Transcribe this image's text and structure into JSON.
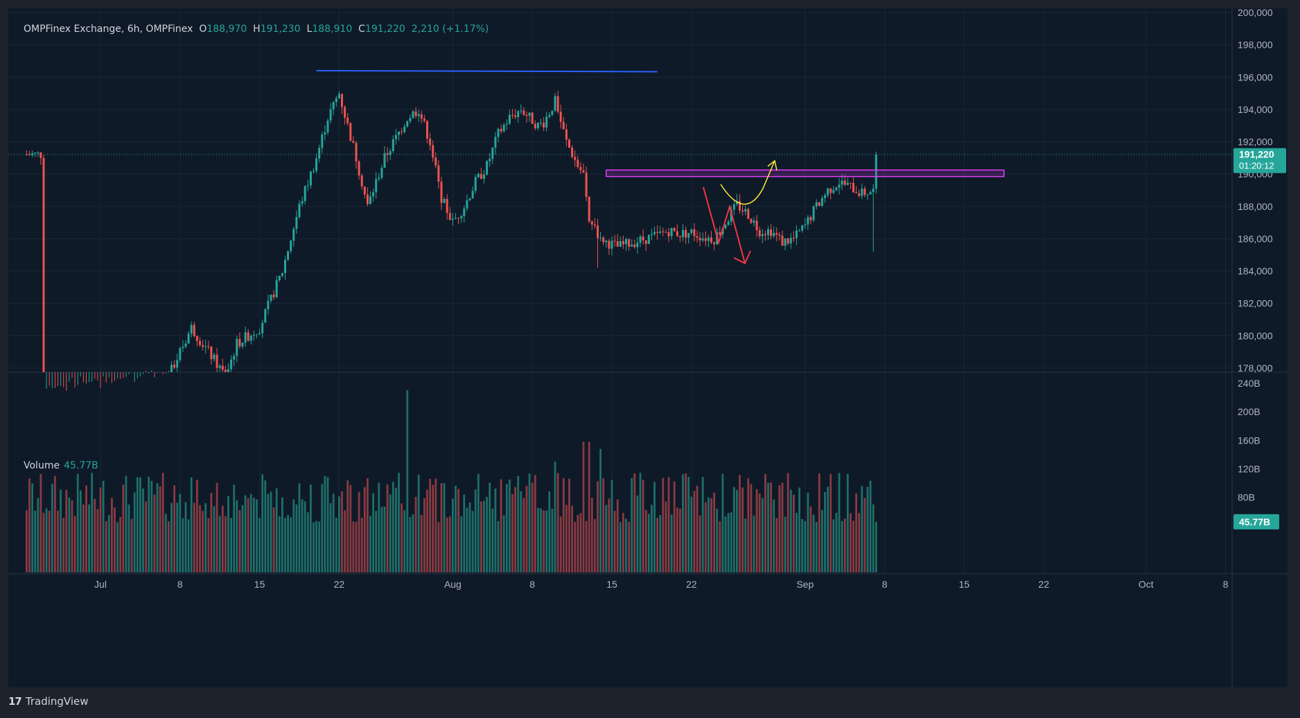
{
  "header": {
    "symbol_text": "OMPFinex Exchange, 6h, OMPFinex",
    "open_label": "O",
    "open_value": "188,970",
    "high_label": "H",
    "high_value": "191,230",
    "low_label": "L",
    "low_value": "188,910",
    "close_label": "C",
    "close_value": "191,220",
    "change_value": "2,210 (+1.17%)"
  },
  "volume_legend": {
    "label": "Volume",
    "value": "45.77B"
  },
  "footer": {
    "brand": "TradingView",
    "logo_text": "17"
  },
  "colors": {
    "up": "#26a69a",
    "down": "#ef5350",
    "background": "#0f1a28",
    "blue_line": "#2962ff",
    "zone": "#e040fb",
    "yellow_arrow": "#ffeb3b",
    "red_arrow": "#f23645"
  },
  "chart_data": [
    {
      "type": "candlestick",
      "title": "OMPFinex Exchange, 6h, OMPFinex",
      "x_tick_labels": [
        "Jul",
        "8",
        "15",
        "22",
        "Aug",
        "8",
        "15",
        "22",
        "Sep",
        "8",
        "15",
        "22",
        "Oct",
        "8"
      ],
      "y_tick_labels": [
        "178,000",
        "180,000",
        "182,000",
        "184,000",
        "186,000",
        "188,000",
        "190,000",
        "192,000",
        "194,000",
        "196,000",
        "198,000",
        "200,000"
      ],
      "ylim": [
        177950,
        200000
      ],
      "last_price_label": "191,220",
      "countdown_label": "01:20:12",
      "price_path_days": [
        [
          -5,
          176500
        ],
        [
          6,
          177500
        ],
        [
          8,
          180500
        ],
        [
          9.5,
          179000
        ],
        [
          11,
          177500
        ],
        [
          12,
          179500
        ],
        [
          14,
          180500
        ],
        [
          16,
          184000
        ],
        [
          17.5,
          188000
        ],
        [
          19,
          191000
        ],
        [
          20,
          193500
        ],
        [
          21,
          195000
        ],
        [
          22.5,
          191000
        ],
        [
          23.5,
          188000
        ],
        [
          25,
          191000
        ],
        [
          27,
          193500
        ],
        [
          28,
          194000
        ],
        [
          29,
          192000
        ],
        [
          30,
          188500
        ],
        [
          31,
          187000
        ],
        [
          32,
          188000
        ],
        [
          33,
          189500
        ],
        [
          34,
          190500
        ],
        [
          35,
          192500
        ],
        [
          36,
          193500
        ],
        [
          37,
          194000
        ],
        [
          38.5,
          193000
        ],
        [
          39,
          193200
        ],
        [
          40,
          194500
        ],
        [
          41,
          192000
        ],
        [
          42,
          190500
        ],
        [
          42.5,
          190000
        ],
        [
          43,
          187000
        ],
        [
          43.5,
          186500
        ],
        [
          44.5,
          185800
        ],
        [
          45.5,
          185500
        ],
        [
          47,
          185800
        ],
        [
          48,
          186000
        ],
        [
          49,
          186200
        ],
        [
          50,
          186500
        ],
        [
          51,
          186300
        ],
        [
          52,
          186400
        ],
        [
          53,
          186100
        ],
        [
          54,
          186000
        ],
        [
          55,
          187000
        ],
        [
          56,
          188100
        ],
        [
          57,
          187500
        ],
        [
          58,
          186500
        ],
        [
          59,
          186500
        ],
        [
          60,
          185800
        ],
        [
          61,
          186000
        ],
        [
          62,
          186800
        ],
        [
          63,
          188000
        ],
        [
          64,
          189000
        ],
        [
          65,
          189500
        ],
        [
          66,
          189200
        ],
        [
          67,
          188800
        ],
        [
          68,
          188970
        ],
        [
          68.3,
          191220
        ]
      ],
      "annotations": [
        {
          "name": "resistance-line",
          "days": [
            19,
            49
          ],
          "price": 196400
        },
        {
          "name": "supply-zone",
          "days": [
            44.5,
            79.5
          ],
          "price_range": [
            189850,
            190250
          ]
        },
        {
          "name": "bullish-scenario-arrow",
          "days": [
            70.5,
            76.5
          ]
        },
        {
          "name": "bearish-scenario-arrow",
          "days": [
            68.5,
            74.5
          ]
        }
      ]
    },
    {
      "type": "bar",
      "title": "Volume",
      "y_tick_labels": [
        "80B",
        "120B",
        "160B",
        "200B",
        "240B"
      ],
      "ylim": [
        0,
        240
      ],
      "last_value_label": "45.77B",
      "spikes": [
        [
          27,
          230
        ],
        [
          42.5,
          158
        ],
        [
          43,
          158
        ],
        [
          44,
          148
        ],
        [
          7,
          85
        ],
        [
          40,
          130
        ],
        [
          30,
          100
        ]
      ],
      "base_range": [
        45,
        115
      ]
    }
  ]
}
